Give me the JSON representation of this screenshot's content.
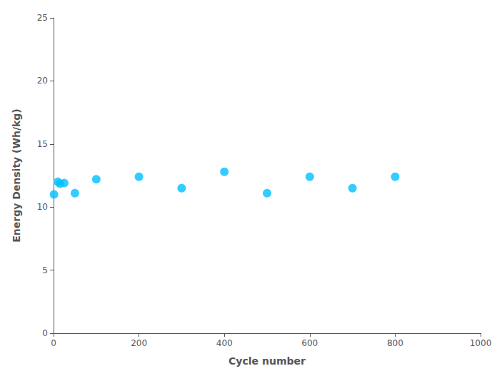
{
  "chart_data": {
    "type": "scatter",
    "x": [
      1,
      10,
      15,
      25,
      50,
      100,
      200,
      300,
      400,
      500,
      600,
      700,
      800
    ],
    "values": [
      11.0,
      12.0,
      11.85,
      11.9,
      11.1,
      12.2,
      12.4,
      11.5,
      12.8,
      11.1,
      12.4,
      11.5,
      12.4
    ],
    "color": "#00BFFF",
    "xlabel": "Cycle number",
    "ylabel": "Energy Density (Wh/kg)",
    "xlim": [
      0,
      1000
    ],
    "ylim": [
      0,
      25
    ],
    "xticks": [
      0,
      200,
      400,
      600,
      800,
      1000
    ],
    "yticks": [
      0,
      5,
      10,
      15,
      20,
      25
    ],
    "grid": false
  }
}
